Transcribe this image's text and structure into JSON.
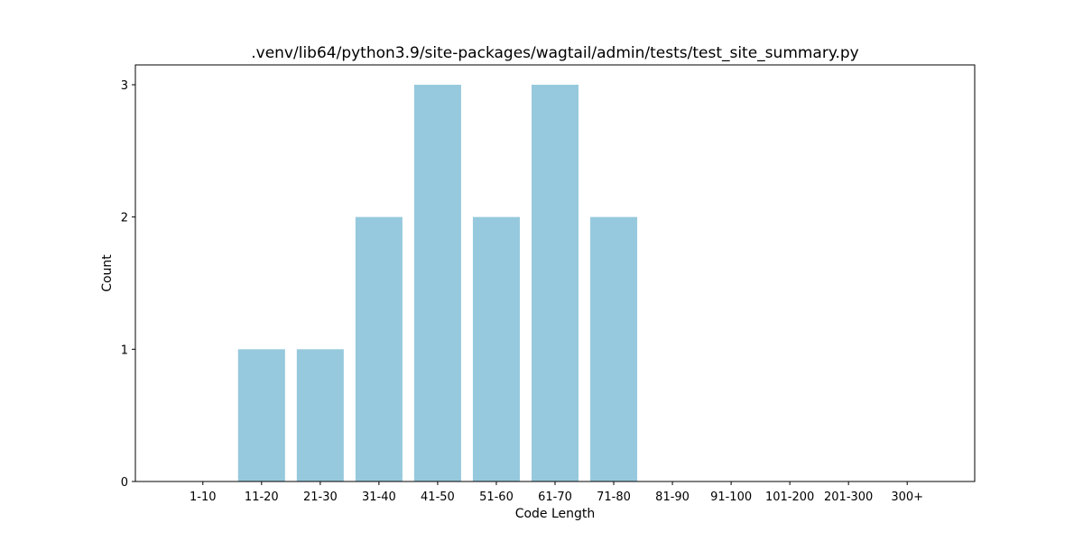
{
  "chart_data": {
    "type": "bar",
    "title": ".venv/lib64/python3.9/site-packages/wagtail/admin/tests/test_site_summary.py",
    "xlabel": "Code Length",
    "ylabel": "Count",
    "categories": [
      "1-10",
      "11-20",
      "21-30",
      "31-40",
      "41-50",
      "51-60",
      "61-70",
      "71-80",
      "81-90",
      "91-100",
      "101-200",
      "201-300",
      "300+"
    ],
    "values": [
      0,
      1,
      1,
      2,
      3,
      2,
      3,
      2,
      0,
      0,
      0,
      0,
      0
    ],
    "ylim": [
      0,
      3.15
    ],
    "yticks": [
      0,
      1,
      2,
      3
    ],
    "grid": false,
    "bar_color": "#96c9dd"
  }
}
